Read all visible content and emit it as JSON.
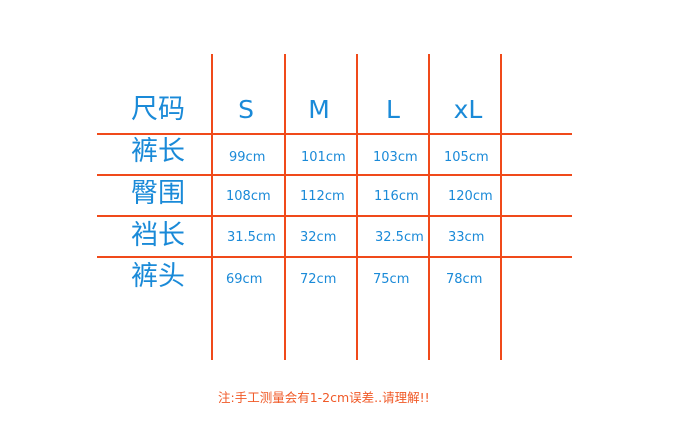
{
  "header": {
    "label": "尺码",
    "sizes": [
      "S",
      "M",
      "L",
      "xL"
    ]
  },
  "rows": [
    {
      "label": "裤长",
      "values": [
        "99cm",
        "101cm",
        "103cm",
        "105cm"
      ]
    },
    {
      "label": "臀围",
      "values": [
        "108cm",
        "112cm",
        "116cm",
        "120cm"
      ]
    },
    {
      "label": "裆长",
      "values": [
        "31.5cm",
        "32cm",
        "32.5cm",
        "33cm"
      ]
    },
    {
      "label": "裤头",
      "values": [
        "69cm",
        "72cm",
        "75cm",
        "78cm"
      ]
    }
  ],
  "note": "注:手工测量会有1-2cm误差..请理解!!",
  "colors": {
    "lines": "#f04a1a",
    "text": "#1a8ad8",
    "note": "#f05a28"
  }
}
